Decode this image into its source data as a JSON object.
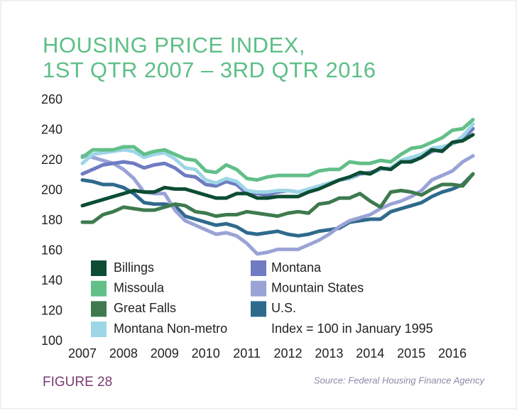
{
  "chart_data": {
    "type": "line",
    "title": [
      "HOUSING PRICE INDEX,",
      "1ST QTR 2007 – 3RD QTR 2016"
    ],
    "annotation": "Index = 100 in January 1995",
    "figure_label": "FIGURE 28",
    "source": "Source: Federal Housing Finance Agency",
    "x": [
      2007,
      2007.25,
      2007.5,
      2007.75,
      2008,
      2008.25,
      2008.5,
      2008.75,
      2009,
      2009.25,
      2009.5,
      2009.75,
      2010,
      2010.25,
      2010.5,
      2010.75,
      2011,
      2011.25,
      2011.5,
      2011.75,
      2012,
      2012.25,
      2012.5,
      2012.75,
      2013,
      2013.25,
      2013.5,
      2013.75,
      2014,
      2014.25,
      2014.5,
      2014.75,
      2015,
      2015.25,
      2015.5,
      2015.75,
      2016,
      2016.25,
      2016.5
    ],
    "xlim": [
      2007,
      2016.5
    ],
    "xticks": [
      2007,
      2008,
      2009,
      2010,
      2011,
      2012,
      2013,
      2014,
      2015,
      2016
    ],
    "ylim": [
      100,
      260
    ],
    "yticks": [
      100,
      120,
      140,
      160,
      180,
      200,
      220,
      240,
      260
    ],
    "grid": false,
    "series": [
      {
        "name": "Billings",
        "color": "#0d4d33",
        "values": [
          190,
          192,
          194,
          196,
          198,
          200,
          199,
          199,
          202,
          201,
          201,
          199,
          197,
          195,
          195,
          198,
          198,
          195,
          195,
          196,
          196,
          196,
          199,
          201,
          204,
          207,
          209,
          212,
          211,
          215,
          214,
          219,
          219,
          222,
          227,
          226,
          232,
          233,
          237
        ]
      },
      {
        "name": "Missoula",
        "color": "#62bf88",
        "values": [
          222,
          227,
          227,
          227,
          229,
          229,
          224,
          226,
          227,
          224,
          221,
          220,
          213,
          212,
          217,
          214,
          208,
          207,
          209,
          210,
          210,
          210,
          210,
          213,
          214,
          214,
          219,
          218,
          218,
          220,
          219,
          224,
          228,
          229,
          232,
          235,
          240,
          241,
          247
        ]
      },
      {
        "name": "Great Falls",
        "color": "#3e7a4e",
        "values": [
          179,
          179,
          184,
          186,
          189,
          188,
          187,
          187,
          189,
          191,
          190,
          186,
          185,
          183,
          184,
          184,
          186,
          185,
          184,
          183,
          185,
          186,
          185,
          191,
          192,
          195,
          195,
          198,
          193,
          189,
          199,
          200,
          199,
          197,
          201,
          204,
          204,
          203,
          211
        ]
      },
      {
        "name": "Montana Non-metro",
        "color": "#9dd6e6",
        "values": [
          218,
          224,
          225,
          226,
          227,
          226,
          222,
          224,
          225,
          221,
          215,
          214,
          207,
          205,
          208,
          206,
          200,
          199,
          199,
          200,
          200,
          199,
          201,
          203,
          205,
          207,
          208,
          212,
          211,
          214,
          215,
          220,
          222,
          224,
          228,
          229,
          231,
          236,
          244
        ]
      },
      {
        "name": "Montana",
        "color": "#6f7bc2",
        "values": [
          211,
          214,
          217,
          218,
          219,
          218,
          215,
          217,
          218,
          215,
          210,
          209,
          204,
          203,
          206,
          204,
          198,
          198,
          197,
          199,
          200,
          199,
          200,
          202,
          204,
          207,
          208,
          211,
          212,
          214,
          215,
          220,
          220,
          222,
          226,
          228,
          231,
          234,
          241
        ]
      },
      {
        "name": "Mountain States",
        "color": "#9aa3d6",
        "values": [
          223,
          222,
          220,
          218,
          214,
          208,
          199,
          198,
          198,
          187,
          180,
          177,
          174,
          171,
          172,
          170,
          165,
          158,
          159,
          161,
          161,
          161,
          164,
          167,
          171,
          176,
          180,
          182,
          184,
          188,
          191,
          193,
          196,
          200,
          207,
          210,
          213,
          219,
          223
        ]
      },
      {
        "name": "U.S.",
        "color": "#2f6a8c",
        "values": [
          207,
          206,
          204,
          204,
          202,
          198,
          192,
          191,
          191,
          190,
          183,
          181,
          179,
          177,
          178,
          176,
          172,
          171,
          172,
          173,
          171,
          170,
          171,
          173,
          174,
          175,
          179,
          180,
          181,
          181,
          186,
          188,
          190,
          192,
          196,
          199,
          201,
          204,
          211
        ]
      }
    ]
  }
}
